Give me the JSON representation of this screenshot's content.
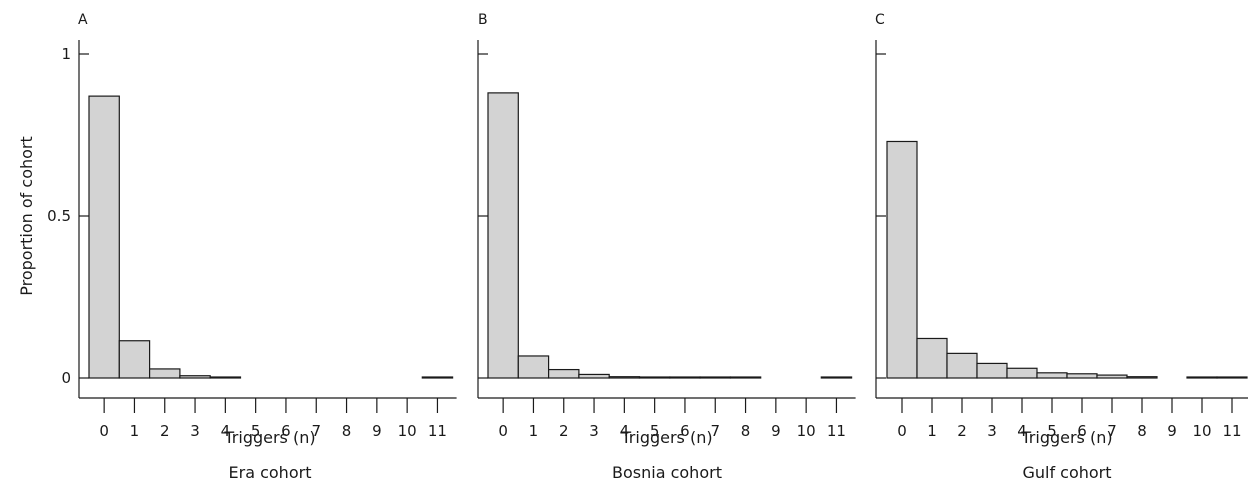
{
  "figure": {
    "ylabel": "Proportion of cohort",
    "bar_fill": "#d3d3d3",
    "bar_stroke": "#1a1a1a",
    "axis_color": "#1a1a1a"
  },
  "chart_data": [
    {
      "type": "bar",
      "panel_label": "A",
      "caption": "Era cohort",
      "xlabel": "Triggers (n)",
      "ylabel": "Proportion of cohort",
      "ylim": [
        0,
        1
      ],
      "y_ticks": [
        0,
        0.5,
        1
      ],
      "y_tick_labels": [
        "0",
        "0.5",
        "1"
      ],
      "categories": [
        "0",
        "1",
        "2",
        "3",
        "4",
        "5",
        "6",
        "7",
        "8",
        "9",
        "10",
        "11"
      ],
      "values": [
        0.87,
        0.115,
        0.028,
        0.007,
        0.003,
        0,
        0,
        0,
        0,
        0,
        0,
        0.002
      ]
    },
    {
      "type": "bar",
      "panel_label": "B",
      "caption": "Bosnia cohort",
      "xlabel": "Triggers (n)",
      "ylabel": "",
      "ylim": [
        0,
        1
      ],
      "y_ticks": [
        0,
        0.5,
        1
      ],
      "y_tick_labels": [
        "",
        "",
        ""
      ],
      "categories": [
        "0",
        "1",
        "2",
        "3",
        "4",
        "5",
        "6",
        "7",
        "8",
        "9",
        "10",
        "11"
      ],
      "values": [
        0.88,
        0.068,
        0.026,
        0.011,
        0.004,
        0.002,
        0.002,
        0.002,
        0.002,
        0,
        0,
        0.002
      ]
    },
    {
      "type": "bar",
      "panel_label": "C",
      "caption": "Gulf cohort",
      "xlabel": "Triggers (n)",
      "ylabel": "",
      "ylim": [
        0,
        1
      ],
      "y_ticks": [
        0,
        0.5,
        1
      ],
      "y_tick_labels": [
        "",
        "",
        ""
      ],
      "categories": [
        "0",
        "1",
        "2",
        "3",
        "4",
        "5",
        "6",
        "7",
        "8",
        "9",
        "10",
        "11"
      ],
      "values": [
        0.73,
        0.122,
        0.076,
        0.045,
        0.03,
        0.016,
        0.013,
        0.009,
        0.004,
        0,
        0.002,
        0.002
      ]
    }
  ]
}
